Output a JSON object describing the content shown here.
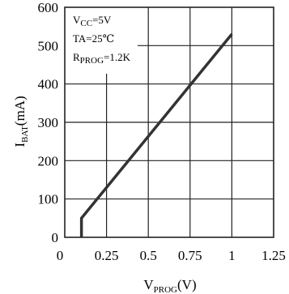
{
  "chart_data": {
    "type": "line",
    "x_ticks": [
      "0",
      "0.25",
      "0.5",
      "0.75",
      "1",
      "1.25"
    ],
    "y_ticks": [
      "0",
      "100",
      "200",
      "300",
      "400",
      "500",
      "600"
    ],
    "xlim": [
      0,
      1.25
    ],
    "ylim": [
      0,
      600
    ],
    "grid": true,
    "ylabel": {
      "main": "I",
      "sub": "BAT",
      "unit": "(mA)"
    },
    "xlabel": {
      "main": "V",
      "sub": "PROG",
      "unit": "(V)"
    },
    "annotations": [
      {
        "main": "V",
        "sub": "CC",
        "rest": "=5V"
      },
      {
        "main": "TA=25℃",
        "sub": "",
        "rest": ""
      },
      {
        "main": "R",
        "sub": "PROG",
        "rest": "=1.2K"
      }
    ],
    "series": [
      {
        "x": [
          0.1,
          0.1,
          1.0
        ],
        "y": [
          0,
          50,
          530
        ]
      }
    ]
  }
}
